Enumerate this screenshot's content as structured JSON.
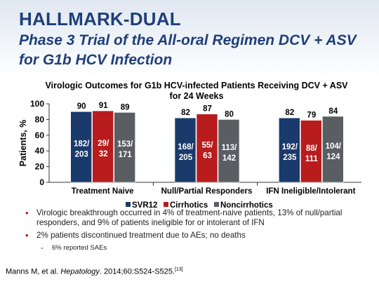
{
  "header": {
    "title": "HALLMARK-DUAL",
    "subtitle": "Phase 3 Trial of the All-oral Regimen DCV + ASV for G1b HCV Infection"
  },
  "chart_data": {
    "type": "bar",
    "title": "Virologic Outcomes for G1b HCV-infected Patients Receiving DCV + ASV for 24 Weeks",
    "ylabel": "Patients, %",
    "xlabel": "",
    "ylim": [
      0,
      100
    ],
    "yticks": [
      0,
      20,
      40,
      60,
      80,
      100
    ],
    "categories": [
      "Treatment Naive",
      "Null/Partial Responders",
      "IFN Ineligible/Intolerant"
    ],
    "series": [
      {
        "name": "SVR12",
        "color": "#1a3a6b",
        "values": [
          90,
          82,
          82
        ],
        "fractions": [
          [
            "182/",
            "203"
          ],
          [
            "168/",
            "205"
          ],
          [
            "192/",
            "235"
          ]
        ]
      },
      {
        "name": "Cirrhotics",
        "color": "#b81c1c",
        "values": [
          91,
          87,
          79
        ],
        "fractions": [
          [
            "29/",
            "32"
          ],
          [
            "55/",
            "63"
          ],
          [
            "88/",
            "111"
          ]
        ]
      },
      {
        "name": "Noncirrhotics",
        "color": "#5a5e62",
        "values": [
          89,
          80,
          84
        ],
        "fractions": [
          [
            "153/",
            "171"
          ],
          [
            "113/",
            "142"
          ],
          [
            "104/",
            "124"
          ]
        ]
      }
    ],
    "legend_position": "bottom",
    "grid": false
  },
  "bullets": [
    "Virologic breakthrough occurred in 4% of treatment-naive patients, 13% of null/partial responders, and 9% of patients ineligible for or intolerant of IFN",
    "2% patients discontinued treatment due to AEs; no deaths"
  ],
  "sub_bullet": "6% reported SAEs",
  "citation": {
    "authors": "Manns M, et al.",
    "journal": "Hepatology",
    "details": ". 2014;60:S524-S525.",
    "ref": "[13]"
  }
}
